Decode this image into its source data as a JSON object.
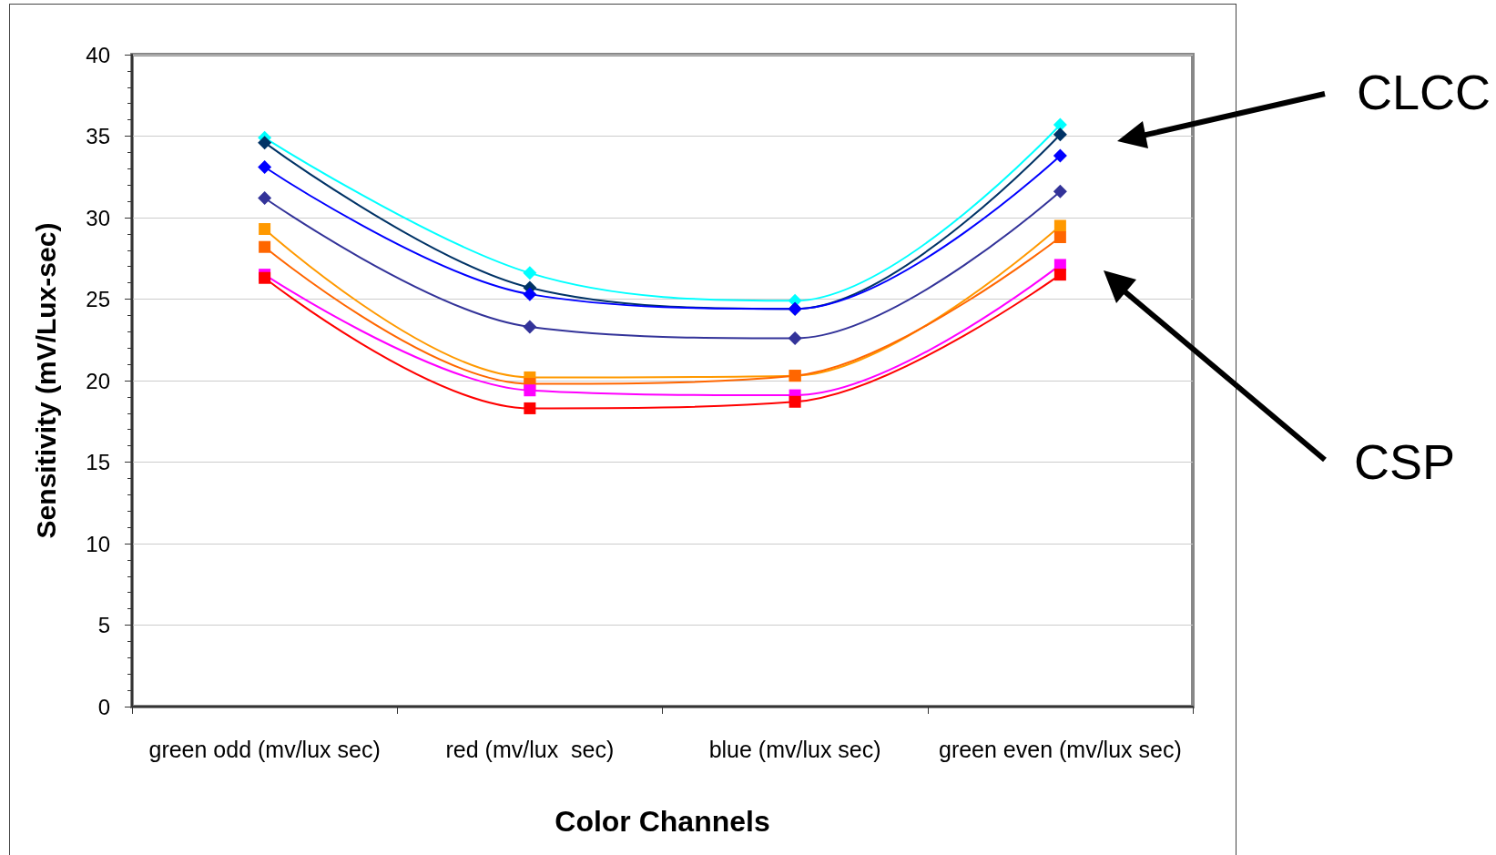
{
  "chart_data": {
    "type": "line",
    "xlabel": "Color Channels",
    "ylabel": "Sensitivity (mV/Lux-sec)",
    "categories": [
      "green odd (mv/lux sec)",
      "red (mv/lux  sec)",
      "blue (mv/lux sec)",
      "green even (mv/lux sec)"
    ],
    "ylim": [
      0,
      40
    ],
    "yticks": [
      0,
      5,
      10,
      15,
      20,
      25,
      30,
      35,
      40
    ],
    "grid": "y",
    "annotations": [
      "CLCC",
      "CSP"
    ],
    "series": [
      {
        "color": "#00ffff",
        "marker": "diamond",
        "values": [
          34.9,
          26.6,
          24.9,
          35.7
        ]
      },
      {
        "color": "#003366",
        "marker": "diamond",
        "values": [
          34.6,
          25.7,
          24.4,
          35.1
        ]
      },
      {
        "color": "#0000ff",
        "marker": "diamond",
        "values": [
          33.1,
          25.3,
          24.4,
          33.8
        ]
      },
      {
        "color": "#333399",
        "marker": "diamond",
        "values": [
          31.2,
          23.3,
          22.6,
          31.6
        ]
      },
      {
        "color": "#ff9900",
        "marker": "square",
        "values": [
          29.3,
          20.2,
          20.3,
          29.5
        ]
      },
      {
        "color": "#ff6600",
        "marker": "square",
        "values": [
          28.2,
          19.8,
          20.3,
          28.8
        ]
      },
      {
        "color": "#ff00ff",
        "marker": "square",
        "values": [
          26.5,
          19.4,
          19.1,
          27.1
        ]
      },
      {
        "color": "#ff0000",
        "marker": "square",
        "values": [
          26.3,
          18.3,
          18.7,
          26.5
        ]
      }
    ]
  }
}
